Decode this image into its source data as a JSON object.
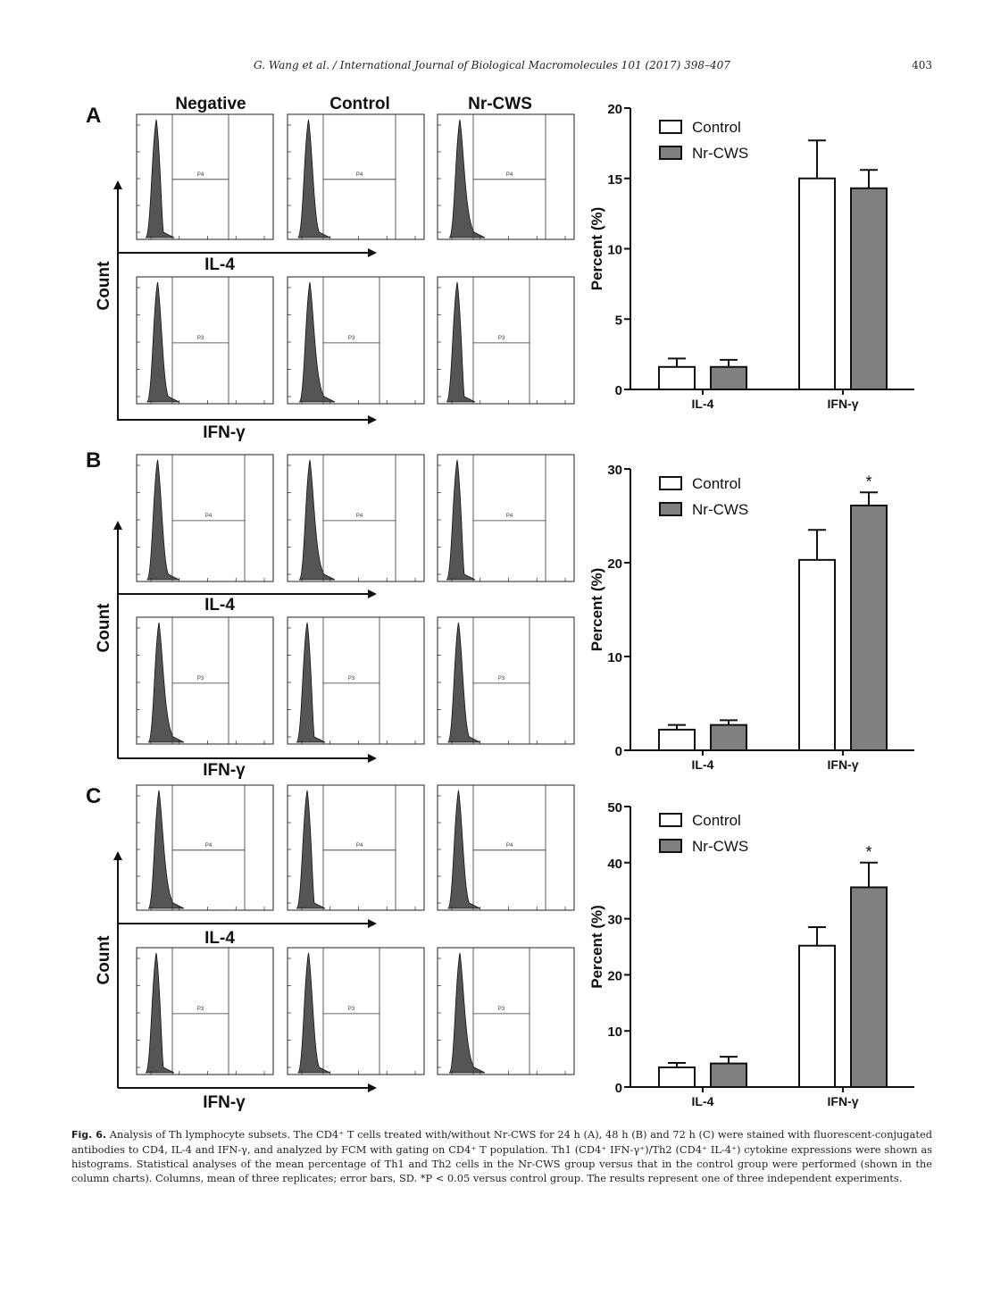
{
  "header": {
    "journal": "G. Wang et al. / International Journal of Biological Macromolecules 101 (2017) 398–407",
    "page_number": "403"
  },
  "flow": {
    "column_titles": [
      "Negative",
      "Control",
      "Nr-CWS"
    ],
    "count_label": "Count",
    "il4_axis": "IL-4",
    "ifng_axis": "IFN-γ",
    "gate_il4": "P4",
    "gate_ifng": "P3",
    "hist_color": "#555555"
  },
  "panels": [
    {
      "letter": "A"
    },
    {
      "letter": "B"
    },
    {
      "letter": "C"
    }
  ],
  "chart_data": [
    {
      "type": "bar",
      "panel": "A",
      "categories": [
        "IL-4",
        "IFN-γ"
      ],
      "series": [
        {
          "name": "Control",
          "values": [
            1.6,
            15.0
          ],
          "errors": [
            0.6,
            2.7
          ],
          "color": "#ffffff"
        },
        {
          "name": "Nr-CWS",
          "values": [
            1.6,
            14.3
          ],
          "errors": [
            0.5,
            1.3
          ],
          "color": "#808080"
        }
      ],
      "ylabel": "Percent  (%)",
      "ylim": [
        0,
        20
      ],
      "yticks": [
        "0",
        "5",
        "10",
        "15",
        "20"
      ],
      "ytick_values": [
        0,
        5,
        10,
        15,
        20
      ],
      "significance": [],
      "legend_position": "top-left"
    },
    {
      "type": "bar",
      "panel": "B",
      "categories": [
        "IL-4",
        "IFN-γ"
      ],
      "series": [
        {
          "name": "Control",
          "values": [
            2.2,
            20.3
          ],
          "errors": [
            0.5,
            3.2
          ],
          "color": "#ffffff"
        },
        {
          "name": "Nr-CWS",
          "values": [
            2.7,
            26.1
          ],
          "errors": [
            0.5,
            1.4
          ],
          "color": "#808080"
        }
      ],
      "ylabel": "Percent  (%)",
      "ylim": [
        0,
        30
      ],
      "yticks": [
        "0",
        "10",
        "20",
        "30"
      ],
      "ytick_values": [
        0,
        10,
        20,
        30
      ],
      "significance": [
        {
          "category": 1,
          "series": 1,
          "mark": "*"
        }
      ],
      "legend_position": "top-left"
    },
    {
      "type": "bar",
      "panel": "C",
      "categories": [
        "IL-4",
        "IFN-γ"
      ],
      "series": [
        {
          "name": "Control",
          "values": [
            3.5,
            25.2
          ],
          "errors": [
            0.8,
            3.3
          ],
          "color": "#ffffff"
        },
        {
          "name": "Nr-CWS",
          "values": [
            4.2,
            35.6
          ],
          "errors": [
            1.2,
            4.4
          ],
          "color": "#808080"
        }
      ],
      "ylabel": "Percent  (%)",
      "ylim": [
        0,
        50
      ],
      "yticks": [
        "0",
        "10",
        "20",
        "30",
        "40",
        "50"
      ],
      "ytick_values": [
        0,
        10,
        20,
        30,
        40,
        50
      ],
      "significance": [
        {
          "category": 1,
          "series": 1,
          "mark": "*"
        }
      ],
      "legend_position": "top-left"
    }
  ],
  "caption": {
    "label": "Fig. 6.",
    "text": "Analysis of Th lymphocyte subsets. The CD4⁺ T cells treated with/without Nr-CWS for 24 h (A), 48 h (B) and 72 h (C) were stained with fluorescent-conjugated antibodies to CD4, IL-4 and IFN-γ, and analyzed by FCM with gating on CD4⁺ T population. Th1 (CD4⁺ IFN-γ⁺)/Th2 (CD4⁺ IL-4⁺) cytokine expressions were shown as histograms. Statistical analyses of the mean percentage of Th1 and Th2 cells in the Nr-CWS group versus that in the control group were performed (shown in the column charts). Columns, mean of three replicates; error bars, SD. *P < 0.05 versus control group. The results represent one of three independent experiments."
  }
}
